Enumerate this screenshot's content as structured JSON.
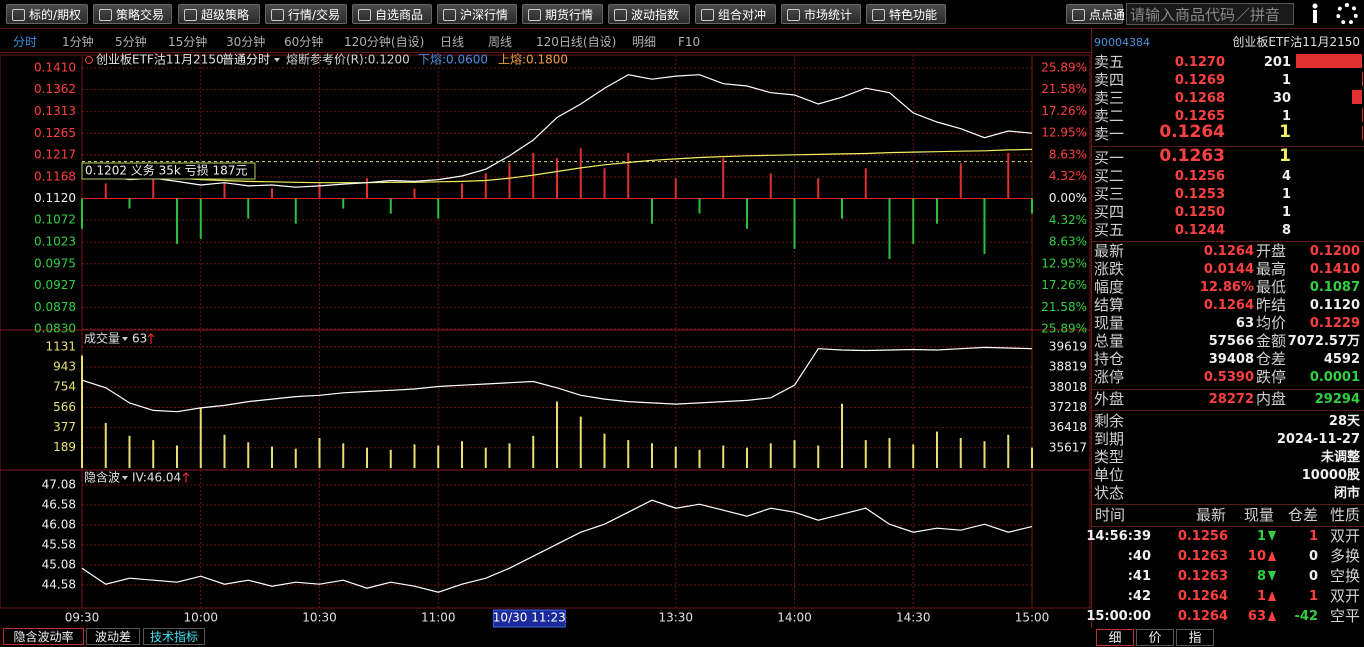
{
  "toolbar": {
    "buttons": [
      "标的/期权",
      "策略交易",
      "超级策略",
      "行情/交易",
      "自选商品",
      "沪深行情",
      "期货行情",
      "波动指数",
      "组合对冲",
      "市场统计",
      "特色功能"
    ],
    "search_button": "点点通",
    "search_placeholder": "请输入商品代码／拼音"
  },
  "period_tabs": [
    "分时",
    "1分钟",
    "5分钟",
    "15分钟",
    "30分钟",
    "60分钟",
    "120分钟(自设)",
    "日线",
    "周线",
    "120日线(自设)",
    "明细",
    "F10"
  ],
  "bottom_tabs": [
    "隐含波动率",
    "波动差",
    "技术指标"
  ],
  "chart_data": [
    {
      "type": "line",
      "title": "创业板ETF沽11月2150",
      "mode": "普通分时",
      "notes": [
        "熔断参考价(R):0.1200",
        "下熔:0.0600",
        "上熔:0.1800"
      ],
      "annotation": "0.1202 义务 35k 亏损 187元",
      "reference_line": 0.1202,
      "baseline": 0.112,
      "x": [
        0,
        6,
        12,
        18,
        24,
        30,
        36,
        42,
        48,
        54,
        60,
        66,
        72,
        78,
        84,
        90,
        96,
        102,
        108,
        114,
        120,
        126,
        132,
        138,
        144,
        150,
        156,
        162,
        168,
        174,
        180,
        186,
        192,
        198,
        204,
        210,
        216,
        222,
        228,
        234,
        240
      ],
      "xlim": [
        0,
        240
      ],
      "ylim": [
        0.083,
        0.141
      ],
      "yticks": [
        {
          "value": 0.141,
          "label": "0.1410"
        },
        0.1362,
        0.1313,
        0.1265,
        0.1217,
        0.1168,
        {
          "value": 0.112,
          "label": "0.1120"
        },
        0.1072,
        0.1023,
        0.0975,
        0.0927,
        0.0878,
        {
          "value": 0.083,
          "label": "0.0830"
        }
      ],
      "y2lim": [
        -25.89,
        25.89
      ],
      "y2ticks": [
        {
          "value": 25.89,
          "label": "25.89%"
        },
        {
          "value": 21.58,
          "label": "21.58%"
        },
        {
          "value": 17.26,
          "label": "17.26%"
        },
        {
          "value": 12.95,
          "label": "12.95%"
        },
        {
          "value": 8.63,
          "label": "8.63%"
        },
        {
          "value": 4.32,
          "label": "4.32%"
        },
        {
          "value": 0,
          "label": "0.00%"
        },
        {
          "value": -4.32,
          "label": "4.32%"
        },
        {
          "value": -8.63,
          "label": "8.63%"
        },
        {
          "value": -12.95,
          "label": "12.95%"
        },
        {
          "value": -17.26,
          "label": "17.26%"
        },
        {
          "value": -21.58,
          "label": "21.58%"
        },
        {
          "value": -25.89,
          "label": "25.89%"
        }
      ],
      "grid": true,
      "series": [
        {
          "kind": "bar",
          "axis": "y2",
          "color": "#e03030",
          "negative_color": "#2fbf3a",
          "values": [
            -6,
            3,
            -2,
            4,
            -9,
            -8,
            3,
            -4,
            2,
            -5,
            3,
            -2,
            4,
            -3,
            2,
            -4,
            3,
            5,
            7,
            9,
            8,
            10,
            6,
            9,
            -5,
            4,
            -3,
            8,
            -6,
            5,
            -10,
            4,
            -4,
            6,
            -12,
            -9,
            -5,
            7,
            -11,
            9,
            -3
          ]
        },
        {
          "kind": "line",
          "color": "#f0f060",
          "values": [
            0.1178,
            0.1174,
            0.117,
            0.1168,
            0.1165,
            0.1162,
            0.116,
            0.1158,
            0.1157,
            0.1156,
            0.1155,
            0.1155,
            0.1155,
            0.1156,
            0.1156,
            0.1157,
            0.1158,
            0.116,
            0.1165,
            0.1172,
            0.118,
            0.1188,
            0.1195,
            0.12,
            0.1205,
            0.1208,
            0.1211,
            0.1213,
            0.1215,
            0.1216,
            0.1217,
            0.1218,
            0.1219,
            0.122,
            0.1222,
            0.1223,
            0.1224,
            0.1225,
            0.1226,
            0.1228,
            0.1229
          ]
        },
        {
          "kind": "line",
          "color": "#ffffff",
          "values": [
            0.1178,
            0.117,
            0.1162,
            0.1165,
            0.1158,
            0.115,
            0.1155,
            0.1148,
            0.115,
            0.1145,
            0.1148,
            0.1152,
            0.1155,
            0.116,
            0.1158,
            0.1162,
            0.117,
            0.1185,
            0.1215,
            0.125,
            0.13,
            0.133,
            0.1365,
            0.1395,
            0.1385,
            0.1392,
            0.1395,
            0.1375,
            0.137,
            0.1355,
            0.135,
            0.133,
            0.1345,
            0.1365,
            0.1355,
            0.131,
            0.129,
            0.1275,
            0.1255,
            0.127,
            0.1265
          ]
        }
      ]
    },
    {
      "type": "bar",
      "title": "成交量",
      "current": "63",
      "x": [
        0,
        6,
        12,
        18,
        24,
        30,
        36,
        42,
        48,
        54,
        60,
        66,
        72,
        78,
        84,
        90,
        96,
        102,
        108,
        114,
        120,
        126,
        132,
        138,
        144,
        150,
        156,
        162,
        168,
        174,
        180,
        186,
        192,
        198,
        204,
        210,
        216,
        222,
        228,
        234,
        240
      ],
      "xlim": [
        0,
        240
      ],
      "ylim": [
        0,
        1269
      ],
      "yticks": [
        1131,
        943,
        754,
        566,
        377,
        189
      ],
      "y2lim": [
        34816,
        40213
      ],
      "y2ticks": [
        39619,
        38819,
        38018,
        37218,
        36418,
        35617
      ],
      "grid": true,
      "series": [
        {
          "kind": "bar",
          "color": "#e8e070",
          "values": [
            1050,
            420,
            300,
            260,
            210,
            560,
            310,
            240,
            200,
            180,
            280,
            230,
            190,
            170,
            220,
            210,
            250,
            190,
            230,
            300,
            620,
            480,
            320,
            260,
            230,
            200,
            170,
            210,
            190,
            230,
            260,
            210,
            600,
            260,
            280,
            220,
            340,
            280,
            250,
            310,
            190
          ]
        },
        {
          "kind": "line",
          "axis": "y2",
          "color": "#ffffff",
          "values": [
            38300,
            38000,
            37400,
            37100,
            37050,
            37200,
            37300,
            37450,
            37550,
            37650,
            37700,
            37800,
            37850,
            37900,
            37950,
            38050,
            38100,
            38150,
            38200,
            38250,
            38000,
            37700,
            37550,
            37450,
            37400,
            37350,
            37400,
            37450,
            37500,
            37600,
            38100,
            39550,
            39500,
            39480,
            39500,
            39520,
            39500,
            39550,
            39600,
            39580,
            39550
          ]
        }
      ]
    },
    {
      "type": "line",
      "title": "隐含波",
      "current": "IV:46.04",
      "x": [
        0,
        6,
        12,
        18,
        24,
        30,
        36,
        42,
        48,
        54,
        60,
        66,
        72,
        78,
        84,
        90,
        96,
        102,
        108,
        114,
        120,
        126,
        132,
        138,
        144,
        150,
        156,
        162,
        168,
        174,
        180,
        186,
        192,
        198,
        204,
        210,
        216,
        222,
        228,
        234,
        240
      ],
      "xlim": [
        0,
        240
      ],
      "ylim": [
        44.08,
        47.205
      ],
      "yticks": [
        47.08,
        46.58,
        46.08,
        45.58,
        45.08,
        44.58
      ],
      "xticks": [
        {
          "value": 0,
          "label": "09:30"
        },
        {
          "value": 30,
          "label": "10:00"
        },
        {
          "value": 60,
          "label": "10:30"
        },
        {
          "value": 90,
          "label": "11:00"
        },
        {
          "value": 150,
          "label": "13:30"
        },
        {
          "value": 180,
          "label": "14:00"
        },
        {
          "value": 210,
          "label": "14:30"
        },
        {
          "value": 240,
          "label": "15:00"
        }
      ],
      "cursor": {
        "value": 113,
        "label": "10/30 11:23"
      },
      "grid": true,
      "series": [
        {
          "kind": "line",
          "color": "#ffffff",
          "values": [
            45.0,
            44.6,
            44.75,
            44.7,
            44.65,
            44.8,
            44.6,
            44.7,
            44.55,
            44.65,
            44.6,
            44.7,
            44.5,
            44.65,
            44.55,
            44.4,
            44.6,
            44.75,
            45.0,
            45.3,
            45.6,
            45.9,
            46.1,
            46.4,
            46.7,
            46.5,
            46.6,
            46.45,
            46.3,
            46.5,
            46.4,
            46.2,
            46.35,
            46.5,
            46.1,
            45.9,
            46.0,
            45.95,
            46.1,
            45.9,
            46.04
          ]
        }
      ]
    }
  ],
  "quote": {
    "code": "90004384",
    "name": "创业板ETF沽11月2150",
    "asks": [
      {
        "label": "卖五",
        "price": "0.1270",
        "qty": 201
      },
      {
        "label": "卖四",
        "price": "0.1269",
        "qty": 1
      },
      {
        "label": "卖三",
        "price": "0.1268",
        "qty": 30
      },
      {
        "label": "卖二",
        "price": "0.1265",
        "qty": 1
      },
      {
        "label": "卖一",
        "price": "0.1264",
        "qty": 1
      }
    ],
    "bids": [
      {
        "label": "买一",
        "price": "0.1263",
        "qty": 1
      },
      {
        "label": "买二",
        "price": "0.1256",
        "qty": 4
      },
      {
        "label": "买三",
        "price": "0.1253",
        "qty": 1
      },
      {
        "label": "买四",
        "price": "0.1250",
        "qty": 1
      },
      {
        "label": "买五",
        "price": "0.1244",
        "qty": 8
      }
    ],
    "stats": [
      [
        "最新",
        "0.1264",
        "开盘",
        "0.1200"
      ],
      [
        "涨跌",
        "0.0144",
        "最高",
        "0.1410"
      ],
      [
        "幅度",
        "12.86%",
        "最低",
        "0.1087"
      ],
      [
        "结算",
        "0.1264",
        "昨结",
        "0.1120"
      ],
      [
        "现量",
        "63",
        "均价",
        "0.1229"
      ],
      [
        "总量",
        "57566",
        "金额",
        "7072.57万"
      ],
      [
        "持仓",
        "39408",
        "仓差",
        "4592"
      ],
      [
        "涨停",
        "0.5390",
        "跌停",
        "0.0001"
      ]
    ],
    "outer": [
      "外盘",
      "28272",
      "内盘",
      "29294"
    ],
    "info": [
      [
        "剩余",
        "28天"
      ],
      [
        "到期",
        "2024-11-27"
      ],
      [
        "类型",
        "未调整"
      ],
      [
        "单位",
        "10000股"
      ],
      [
        "状态",
        "闭市"
      ]
    ],
    "trades": {
      "header": [
        "时间",
        "最新",
        "现量",
        "仓差",
        "性质"
      ],
      "rows": [
        [
          "14:56:39",
          "0.1256",
          "1",
          "1",
          "双开"
        ],
        [
          ":40",
          "0.1263",
          "10",
          "0",
          "多换"
        ],
        [
          ":41",
          "0.1263",
          "8",
          "0",
          "空换"
        ],
        [
          ":42",
          "0.1264",
          "1",
          "1",
          "双开"
        ],
        [
          "15:00:00",
          "0.1264",
          "63",
          "-42",
          "空平"
        ]
      ]
    },
    "tabs": [
      "细",
      "价",
      "指"
    ]
  }
}
